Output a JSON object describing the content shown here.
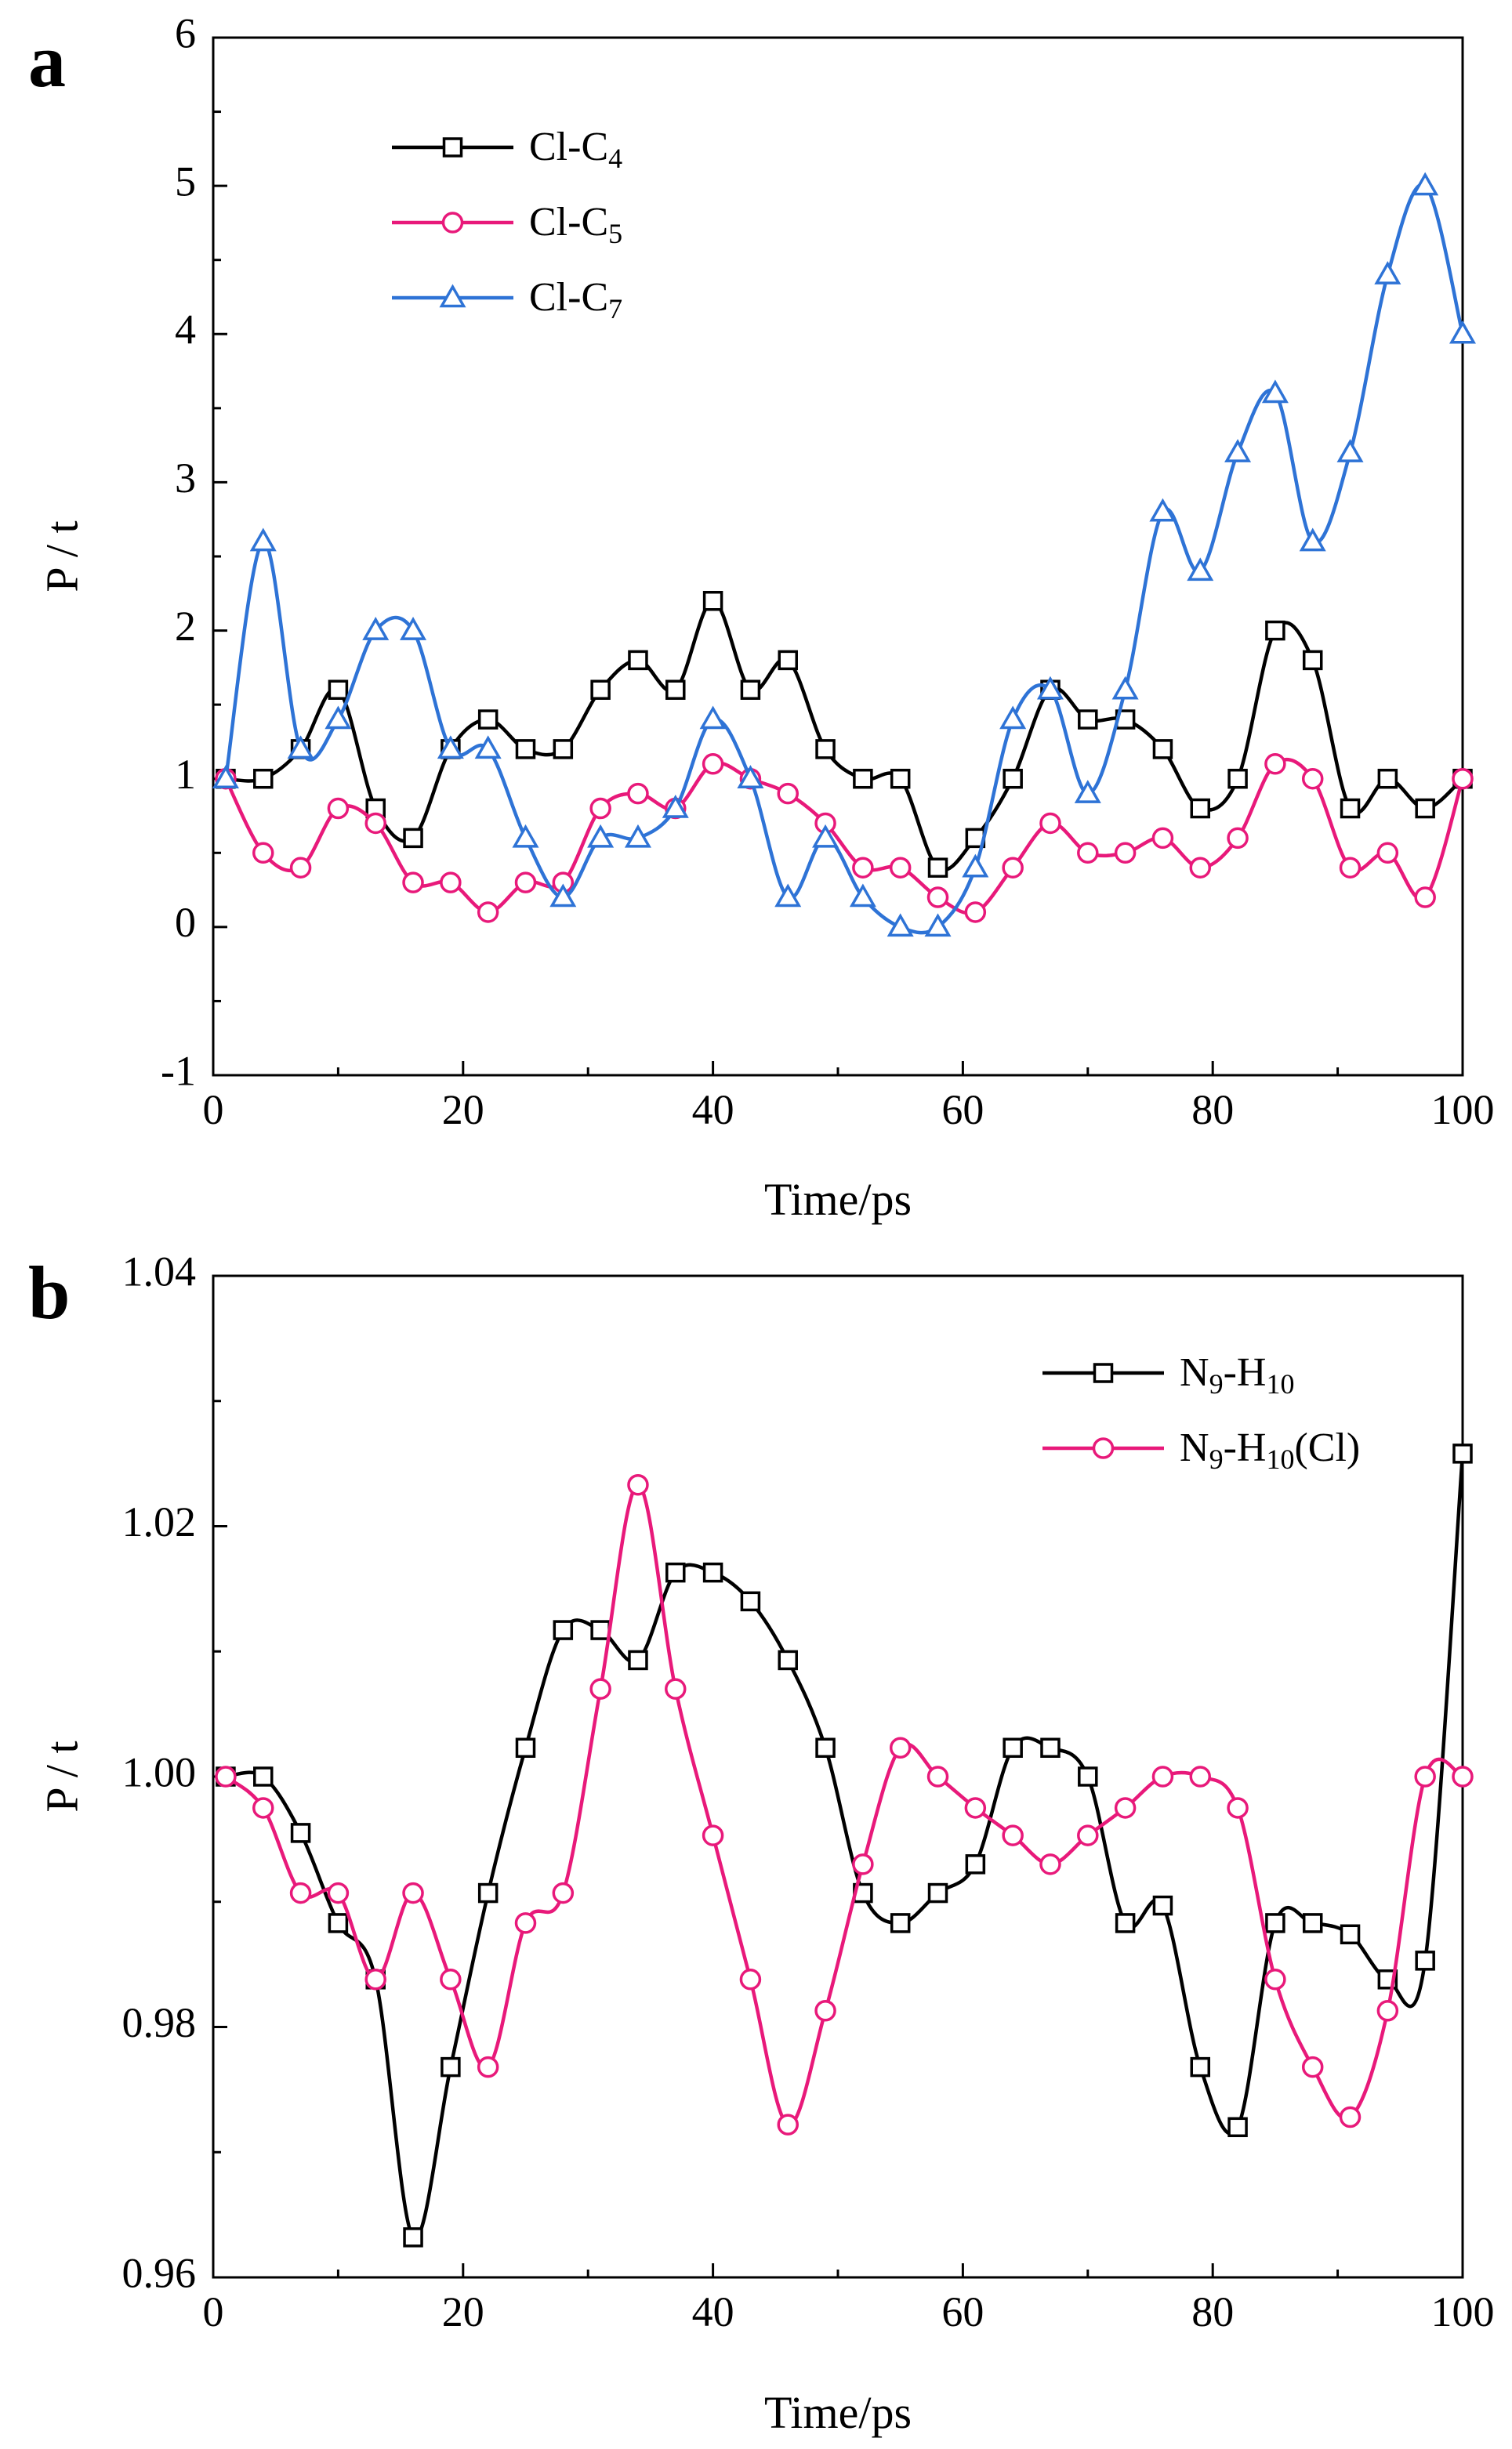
{
  "chart_data": [
    {
      "panel": "a",
      "type": "line",
      "xlabel": "Time/ps",
      "ylabel": "P / t",
      "xlim": [
        0,
        100
      ],
      "ylim": [
        -1,
        6
      ],
      "xticks": [
        "0",
        "20",
        "40",
        "60",
        "80",
        "100"
      ],
      "yticks": [
        "-1",
        "0",
        "1",
        "2",
        "3",
        "4",
        "5",
        "6"
      ],
      "legend_position": "top-left",
      "grid": false,
      "series": [
        {
          "name": "Cl-C4",
          "label_main": "Cl-C",
          "label_sub": "4",
          "label_tail": "",
          "color": "#000000",
          "marker": "square",
          "x": [
            1,
            4,
            7,
            10,
            13,
            16,
            19,
            22,
            25,
            28,
            31,
            34,
            37,
            40,
            43,
            46,
            49,
            52,
            55,
            58,
            61,
            64,
            67,
            70,
            73,
            76,
            79,
            82,
            85,
            88,
            91,
            94,
            97,
            100
          ],
          "y": [
            1,
            1,
            1.2,
            1.6,
            0.8,
            0.6,
            1.2,
            1.4,
            1.2,
            1.2,
            1.6,
            1.8,
            1.6,
            2.2,
            1.6,
            1.8,
            1.2,
            1,
            1,
            0.4,
            0.6,
            1,
            1.6,
            1.4,
            1.4,
            1.2,
            0.8,
            1,
            2,
            1.8,
            0.8,
            1,
            0.8,
            1
          ]
        },
        {
          "name": "Cl-C5",
          "label_main": "Cl-C",
          "label_sub": "5",
          "label_tail": "",
          "color": "#e8197a",
          "marker": "circle",
          "x": [
            1,
            4,
            7,
            10,
            13,
            16,
            19,
            22,
            25,
            28,
            31,
            34,
            37,
            40,
            43,
            46,
            49,
            52,
            55,
            58,
            61,
            64,
            67,
            70,
            73,
            76,
            79,
            82,
            85,
            88,
            91,
            94,
            97,
            100
          ],
          "y": [
            1,
            0.5,
            0.4,
            0.8,
            0.7,
            0.3,
            0.3,
            0.1,
            0.3,
            0.3,
            0.8,
            0.9,
            0.8,
            1.1,
            1,
            0.9,
            0.7,
            0.4,
            0.4,
            0.2,
            0.1,
            0.4,
            0.7,
            0.5,
            0.5,
            0.6,
            0.4,
            0.6,
            1.1,
            1,
            0.4,
            0.5,
            0.2,
            1
          ]
        },
        {
          "name": "Cl-C7",
          "label_main": "Cl-C",
          "label_sub": "7",
          "label_tail": "",
          "color": "#2e73d6",
          "marker": "triangle",
          "x": [
            1,
            4,
            7,
            10,
            13,
            16,
            19,
            22,
            25,
            28,
            31,
            34,
            37,
            40,
            43,
            46,
            49,
            52,
            55,
            58,
            61,
            64,
            67,
            70,
            73,
            76,
            79,
            82,
            85,
            88,
            91,
            94,
            97,
            100
          ],
          "y": [
            1,
            2.6,
            1.2,
            1.4,
            2,
            2,
            1.2,
            1.2,
            0.6,
            0.2,
            0.6,
            0.6,
            0.8,
            1.4,
            1,
            0.2,
            0.6,
            0.2,
            0,
            0,
            0.4,
            1.4,
            1.6,
            0.9,
            1.6,
            2.8,
            2.4,
            3.2,
            3.6,
            2.6,
            3.2,
            4.4,
            5,
            4
          ]
        }
      ]
    },
    {
      "panel": "b",
      "type": "line",
      "xlabel": "Time/ps",
      "ylabel": "P / t",
      "xlim": [
        0,
        100
      ],
      "ylim": [
        0.96,
        1.04
      ],
      "xticks": [
        "0",
        "20",
        "40",
        "60",
        "80",
        "100"
      ],
      "yticks": [
        "0.96",
        "0.98",
        "1.00",
        "1.02",
        "1.04"
      ],
      "legend_position": "top-right",
      "grid": false,
      "series": [
        {
          "name": "N9-H10",
          "label_main": "N",
          "label_sub": "9",
          "label_tail": "-H",
          "label_sub2": "10",
          "label_tail2": "",
          "color": "#000000",
          "marker": "square",
          "x": [
            1,
            4,
            7,
            10,
            13,
            16,
            19,
            22,
            25,
            28,
            31,
            34,
            37,
            40,
            43,
            46,
            49,
            52,
            55,
            58,
            61,
            64,
            67,
            70,
            73,
            76,
            79,
            82,
            85,
            88,
            91,
            94,
            97,
            100
          ],
          "y": [
            1.0,
            1.0,
            0.9955,
            0.9883,
            0.9838,
            0.9632,
            0.9768,
            0.9907,
            1.0023,
            1.0117,
            1.0117,
            1.0093,
            1.0163,
            1.0163,
            1.014,
            1.0093,
            1.0023,
            0.9907,
            0.9883,
            0.9907,
            0.993,
            1.0023,
            1.0023,
            1.0,
            0.9883,
            0.9897,
            0.9768,
            0.972,
            0.9883,
            0.9883,
            0.9874,
            0.9838,
            0.9853,
            1.0258
          ]
        },
        {
          "name": "N9-H10(Cl)",
          "label_main": "N",
          "label_sub": "9",
          "label_tail": "-H",
          "label_sub2": "10",
          "label_tail2": "(Cl)",
          "color": "#e8197a",
          "marker": "circle",
          "x": [
            1,
            4,
            7,
            10,
            13,
            16,
            19,
            22,
            25,
            28,
            31,
            34,
            37,
            40,
            43,
            46,
            49,
            52,
            55,
            58,
            61,
            64,
            67,
            70,
            73,
            76,
            79,
            82,
            85,
            88,
            91,
            94,
            97,
            100
          ],
          "y": [
            1.0,
            0.9975,
            0.9907,
            0.9907,
            0.9838,
            0.9907,
            0.9838,
            0.9768,
            0.9883,
            0.9907,
            1.007,
            1.0233,
            1.007,
            0.9953,
            0.9838,
            0.9722,
            0.9813,
            0.993,
            1.0023,
            1.0,
            0.9975,
            0.9953,
            0.993,
            0.9953,
            0.9975,
            1.0,
            1.0,
            0.9975,
            0.9838,
            0.9768,
            0.9728,
            0.9813,
            1.0,
            1.0
          ]
        }
      ]
    }
  ]
}
